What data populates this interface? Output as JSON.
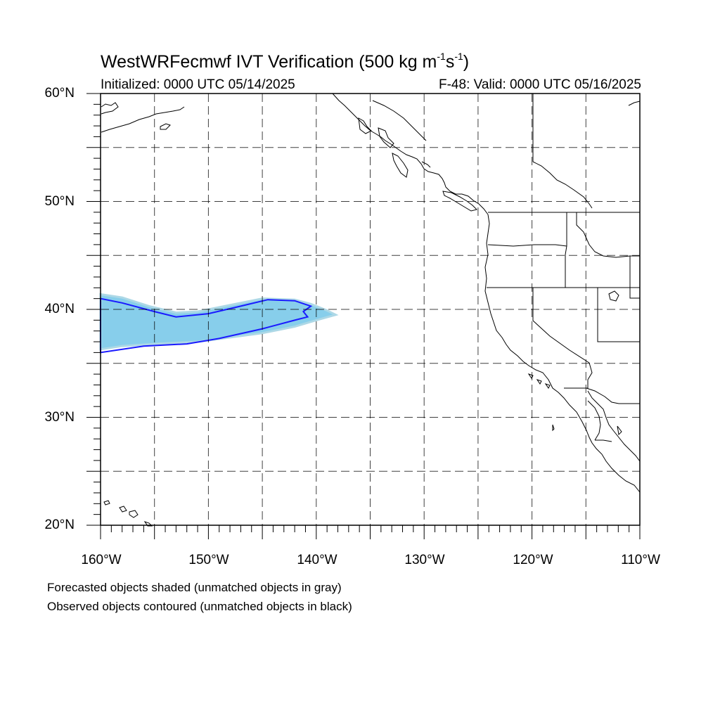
{
  "title": {
    "text_before": "WestWRFecmwf IVT Verification (500 kg m",
    "sup1": "-1",
    "text_mid": "s",
    "sup2": "-1",
    "text_after": ")"
  },
  "init_label": "Initialized: 0000 UTC 05/14/2025",
  "valid_label": "F-48: Valid: 0000 UTC 05/16/2025",
  "lat_labels": [
    "60°N",
    "50°N",
    "40°N",
    "30°N",
    "20°N"
  ],
  "lon_labels": [
    "160°W",
    "150°W",
    "140°W",
    "130°W",
    "120°W",
    "110°W"
  ],
  "legend_notes": [
    "Forecasted objects shaded (unmatched objects in gray)",
    "Observed objects contoured (unmatched objects in black)"
  ],
  "colors": {
    "forecast_fill": "#87ceeb",
    "forecast_edge": "#add8e6",
    "observed_contour": "#1a1aff",
    "coast": "#000000",
    "grid": "#000000"
  },
  "map_extent": {
    "lon": [
      -160,
      -110
    ],
    "lat": [
      20,
      60
    ],
    "grid_step_deg": 5
  },
  "forecast_object": {
    "points": [
      [
        -160,
        41.4
      ],
      [
        -158,
        41.1
      ],
      [
        -155.5,
        40.3
      ],
      [
        -153,
        39.7
      ],
      [
        -151,
        39.8
      ],
      [
        -148,
        40.4
      ],
      [
        -145,
        41.0
      ],
      [
        -142,
        40.9
      ],
      [
        -140.5,
        40.5
      ],
      [
        -139,
        39.9
      ],
      [
        -138.2,
        39.5
      ],
      [
        -140,
        39.0
      ],
      [
        -142,
        38.4
      ],
      [
        -145,
        37.8
      ],
      [
        -148,
        37.4
      ],
      [
        -151,
        37.0
      ],
      [
        -155,
        36.8
      ],
      [
        -158,
        36.6
      ],
      [
        -160,
        36.3
      ]
    ]
  },
  "observed_object": {
    "points": [
      [
        -160,
        41.0
      ],
      [
        -158,
        40.6
      ],
      [
        -155,
        39.8
      ],
      [
        -153,
        39.3
      ],
      [
        -150,
        39.6
      ],
      [
        -147,
        40.3
      ],
      [
        -144.5,
        40.9
      ],
      [
        -142,
        40.8
      ],
      [
        -140.5,
        40.3
      ],
      [
        -141.2,
        39.8
      ],
      [
        -140.8,
        39.3
      ],
      [
        -142,
        39.0
      ],
      [
        -145,
        38.2
      ],
      [
        -149,
        37.3
      ],
      [
        -152,
        36.8
      ],
      [
        -156,
        36.6
      ],
      [
        -160,
        36.0
      ]
    ]
  }
}
